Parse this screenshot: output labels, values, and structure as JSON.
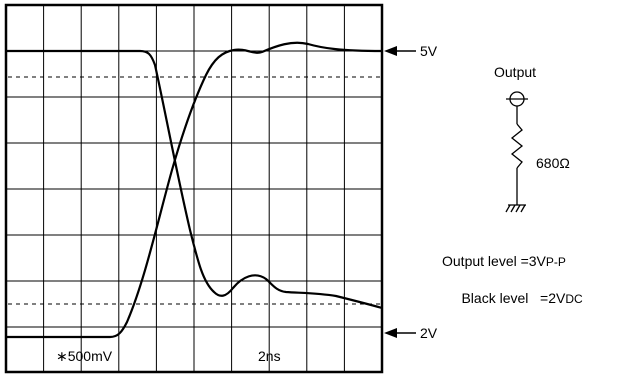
{
  "labels": {
    "top_marker": "5V",
    "bottom_marker": "2V",
    "scale_vertical": "∗500mV",
    "scale_horizontal": "2ns"
  },
  "circuit": {
    "title": "Output",
    "resistor_value": "680Ω"
  },
  "specs": {
    "output_level_prefix": "Output level =3V",
    "output_level_sub": "P-P",
    "black_level_prefix": "Black level   =2V",
    "black_level_sub": "DC"
  },
  "colors": {
    "ink": "#000000",
    "background": "#ffffff"
  }
}
